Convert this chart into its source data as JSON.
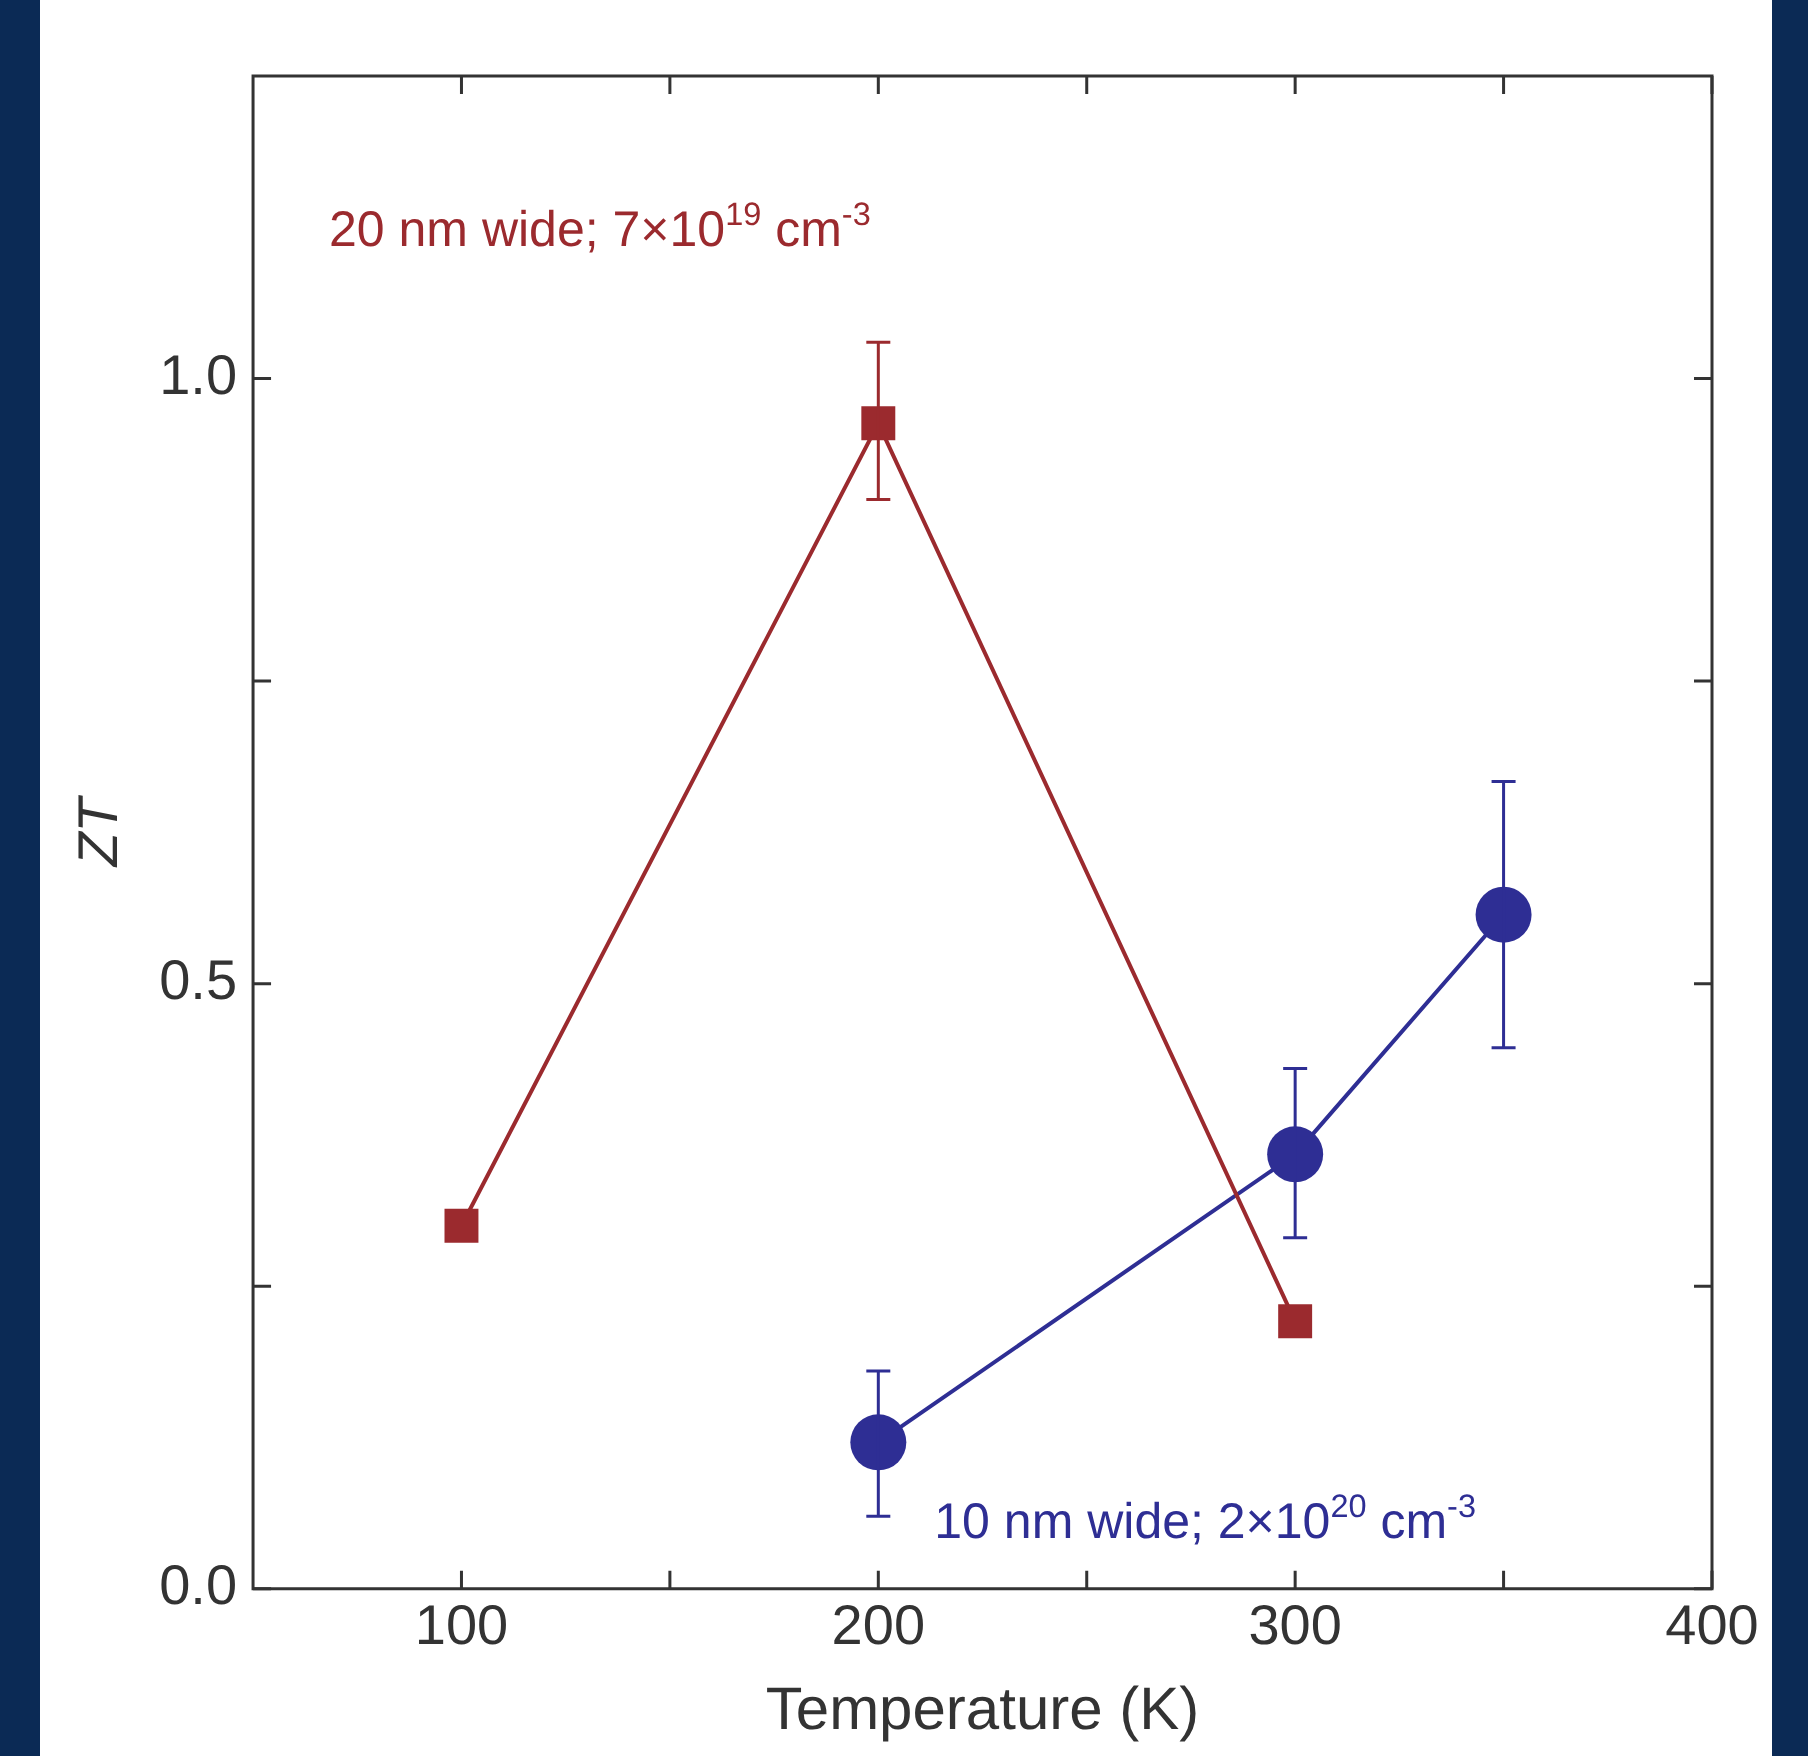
{
  "chart_data": {
    "type": "line",
    "xlabel": "Temperature (K)",
    "ylabel": "ZT",
    "xlim": [
      50,
      400
    ],
    "xticks": [
      {
        "value": 100,
        "label": "100"
      },
      {
        "value": 150,
        "label": null
      },
      {
        "value": 200,
        "label": "200"
      },
      {
        "value": 250,
        "label": null
      },
      {
        "value": 300,
        "label": "300"
      },
      {
        "value": 350,
        "label": null
      },
      {
        "value": 400,
        "label": "400"
      }
    ],
    "ylim": [
      0,
      1.25
    ],
    "yticks": [
      {
        "value": 0,
        "label": "0.0"
      },
      {
        "value": 0.25,
        "label": null
      },
      {
        "value": 0.5,
        "label": "0.5"
      },
      {
        "value": 0.75,
        "label": null
      },
      {
        "value": 1,
        "label": "1.0"
      }
    ],
    "grid": false,
    "legend": false,
    "series": [
      {
        "name": "20 nm wide; 7×10$^{19}$ cm$^{-3}$",
        "color": "#9b2a2e",
        "marker": "square",
        "x": [
          100,
          200,
          300
        ],
        "values": [
          0.3,
          0.963,
          0.221
        ],
        "errors": [
          null,
          [
            0.9,
            1.03
          ],
          null
        ]
      },
      {
        "name": "10 nm wide; 2×10$^{20}$ cm$^{-3}$",
        "color": "#2e2e94",
        "marker": "circle",
        "x": [
          200,
          300,
          350
        ],
        "values": [
          0.121,
          0.359,
          0.557
        ],
        "errors": [
          [
            0.06,
            0.18
          ],
          [
            0.29,
            0.43
          ],
          [
            0.447,
            0.667
          ]
        ]
      }
    ]
  }
}
